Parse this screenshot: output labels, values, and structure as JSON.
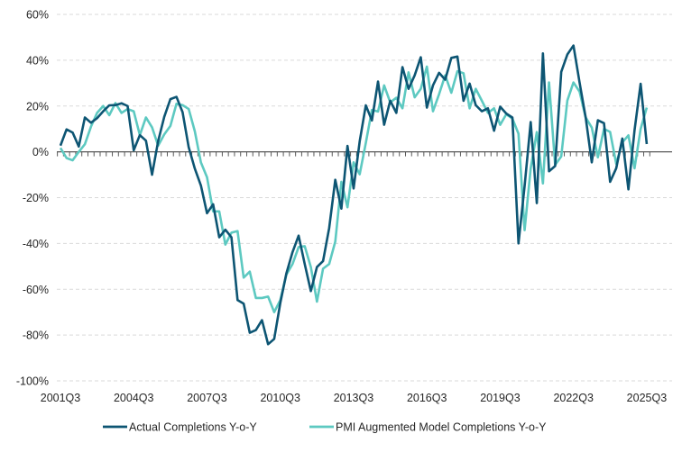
{
  "chart_data": {
    "type": "line",
    "title": "",
    "xlabel": "",
    "ylabel": "",
    "x_start": "2001Q3",
    "x_end": "2025Q3",
    "x_tick_labels": [
      "2001Q3",
      "2004Q3",
      "2007Q3",
      "2010Q3",
      "2013Q3",
      "2016Q3",
      "2019Q3",
      "2022Q3",
      "2025Q3"
    ],
    "y_tick_labels": [
      "60%",
      "40%",
      "20%",
      "0%",
      "-20%",
      "-40%",
      "-60%",
      "-80%",
      "-100%"
    ],
    "ylim": [
      -100,
      60
    ],
    "y_unit": "%",
    "grid": "horizontal dashed",
    "legend_position": "bottom",
    "series": [
      {
        "name": "Actual Completions Y-o-Y",
        "color": "#0d5573",
        "values": [
          2.7,
          9.8,
          8.4,
          2.3,
          15,
          12.7,
          14.7,
          17.7,
          20.3,
          20.4,
          21.2,
          20,
          0.7,
          7.3,
          4.9,
          -10,
          4.7,
          15.3,
          23,
          24,
          17.3,
          2,
          -7.3,
          -14.7,
          -26.8,
          -22.9,
          -37.3,
          -34,
          -37.3,
          -64.7,
          -66.3,
          -79,
          -77.8,
          -73.5,
          -84,
          -81.7,
          -66,
          -53,
          -43.8,
          -36.6,
          -49,
          -60.8,
          -50.3,
          -47.7,
          -33.3,
          -12.2,
          -24.8,
          2.6,
          -16,
          4.6,
          20.3,
          13.7,
          30.7,
          11.8,
          22.3,
          17,
          37,
          27.5,
          33.4,
          41.3,
          19.3,
          29,
          34.5,
          31.5,
          41,
          41.6,
          22.3,
          29.8,
          20.4,
          17.7,
          19,
          9.2,
          19.7,
          16.7,
          15,
          -40,
          -15,
          13,
          -22.4,
          43,
          -8.5,
          -6.2,
          34.9,
          42.5,
          46.4,
          30.3,
          15,
          -4.6,
          13.8,
          12.5,
          -13.1,
          -7.2,
          5.8,
          -16.4,
          9.4,
          29.7,
          3.4
        ]
      },
      {
        "name": "PMI Augmented Model Completions Y-o-Y",
        "color": "#5dc9c1",
        "values": [
          1.7,
          -2.7,
          -3.7,
          0,
          3.3,
          11,
          17,
          20,
          16,
          21.3,
          17,
          18.7,
          17.7,
          7.3,
          15,
          10.7,
          2.7,
          7.6,
          11.3,
          21,
          20.4,
          18.7,
          9,
          -4.6,
          -11.1,
          -26,
          -26,
          -40.5,
          -35.3,
          -34.6,
          -54.9,
          -52.3,
          -63.8,
          -63.8,
          -63.2,
          -70,
          -64.7,
          -53.6,
          -49,
          -41.6,
          -41.2,
          -50.3,
          -65.4,
          -51,
          -49,
          -39.2,
          -13.1,
          -24.2,
          -4.6,
          -9.8,
          3.9,
          18.3,
          17.6,
          29,
          21.6,
          23.6,
          19,
          34.7,
          23.8,
          27.5,
          37.2,
          17.7,
          25.2,
          33.4,
          25.8,
          35.2,
          34.3,
          19,
          27.5,
          22.3,
          17,
          19,
          11.8,
          16.4,
          14.5,
          7.9,
          -34.2,
          -7.2,
          8.6,
          -13.8,
          30.3,
          -5.7,
          -2,
          22.4,
          30.3,
          26.3,
          15,
          10.6,
          -2.4,
          10,
          8.7,
          -5.2,
          4.1,
          7.2,
          -7.2,
          10,
          19.3
        ]
      }
    ]
  }
}
